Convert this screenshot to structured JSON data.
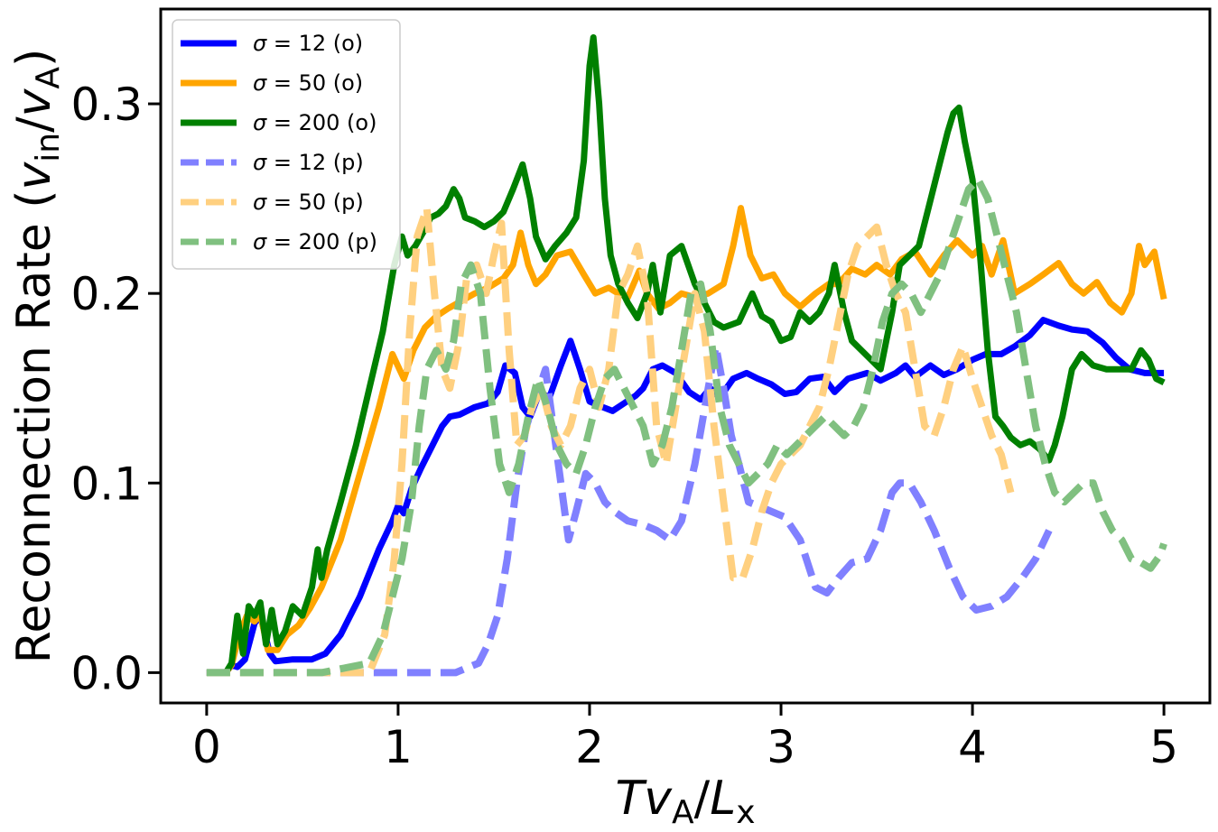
{
  "chart_data": {
    "type": "line",
    "title": "",
    "xlabel": "T v_A / L_x",
    "ylabel": "Reconnection Rate (v_in / v_A)",
    "xlim": [
      -0.24,
      5.24
    ],
    "ylim": [
      -0.016,
      0.35
    ],
    "xticks": [
      "0",
      "1",
      "2",
      "3",
      "4",
      "5"
    ],
    "yticks": [
      "0.0",
      "0.1",
      "0.2",
      "0.3"
    ],
    "legend_position": "top-left",
    "series": [
      {
        "name": "σ = 12 (o)",
        "label_sym": "σ",
        "label_rest": " = 12 (o)",
        "color": "#0000ff",
        "style": "solid",
        "x": [
          0,
          0.1,
          0.13,
          0.16,
          0.2,
          0.25,
          0.28,
          0.33,
          0.36,
          0.45,
          0.55,
          0.62,
          0.7,
          0.8,
          0.9,
          0.97,
          1.0,
          1.03,
          1.07,
          1.12,
          1.18,
          1.23,
          1.27,
          1.32,
          1.4,
          1.47,
          1.52,
          1.56,
          1.61,
          1.65,
          1.69,
          1.74,
          1.79,
          1.85,
          1.9,
          1.95,
          2.0,
          2.07,
          2.12,
          2.18,
          2.24,
          2.28,
          2.33,
          2.38,
          2.45,
          2.52,
          2.58,
          2.63,
          2.68,
          2.75,
          2.82,
          2.88,
          2.95,
          3.02,
          3.08,
          3.15,
          3.22,
          3.28,
          3.35,
          3.45,
          3.52,
          3.6,
          3.65,
          3.7,
          3.78,
          3.85,
          3.92,
          4.0,
          4.07,
          4.15,
          4.22,
          4.3,
          4.37,
          4.45,
          4.52,
          4.6,
          4.68,
          4.75,
          4.82,
          4.9,
          5.0
        ],
        "y": [
          0.0,
          0.0,
          0.004,
          0.003,
          0.007,
          0.026,
          0.03,
          0.01,
          0.006,
          0.007,
          0.007,
          0.01,
          0.02,
          0.04,
          0.065,
          0.08,
          0.088,
          0.084,
          0.097,
          0.108,
          0.12,
          0.13,
          0.135,
          0.136,
          0.14,
          0.142,
          0.148,
          0.162,
          0.158,
          0.14,
          0.135,
          0.148,
          0.145,
          0.162,
          0.175,
          0.16,
          0.143,
          0.14,
          0.138,
          0.142,
          0.146,
          0.15,
          0.16,
          0.162,
          0.158,
          0.148,
          0.144,
          0.15,
          0.145,
          0.155,
          0.158,
          0.155,
          0.152,
          0.147,
          0.148,
          0.155,
          0.156,
          0.148,
          0.155,
          0.158,
          0.154,
          0.158,
          0.162,
          0.156,
          0.162,
          0.157,
          0.16,
          0.165,
          0.168,
          0.168,
          0.172,
          0.178,
          0.186,
          0.183,
          0.181,
          0.18,
          0.174,
          0.166,
          0.16,
          0.158,
          0.158
        ]
      },
      {
        "name": "σ = 50 (o)",
        "label_sym": "σ",
        "label_rest": " = 50 (o)",
        "color": "#ffa500",
        "style": "solid",
        "x": [
          0,
          0.1,
          0.13,
          0.17,
          0.21,
          0.25,
          0.28,
          0.32,
          0.37,
          0.42,
          0.48,
          0.54,
          0.6,
          0.7,
          0.8,
          0.9,
          0.97,
          1.03,
          1.08,
          1.14,
          1.2,
          1.26,
          1.33,
          1.4,
          1.47,
          1.55,
          1.6,
          1.64,
          1.68,
          1.72,
          1.77,
          1.83,
          1.9,
          1.97,
          2.03,
          2.1,
          2.15,
          2.2,
          2.26,
          2.3,
          2.36,
          2.42,
          2.48,
          2.55,
          2.62,
          2.7,
          2.75,
          2.79,
          2.84,
          2.9,
          2.96,
          3.02,
          3.1,
          3.18,
          3.25,
          3.3,
          3.37,
          3.44,
          3.5,
          3.57,
          3.63,
          3.7,
          3.78,
          3.85,
          3.92,
          4.0,
          4.05,
          4.1,
          4.16,
          4.22,
          4.3,
          4.37,
          4.45,
          4.52,
          4.58,
          4.65,
          4.72,
          4.78,
          4.83,
          4.87,
          4.9,
          4.95,
          5.0
        ],
        "y": [
          0.0,
          0.0,
          0.004,
          0.02,
          0.03,
          0.027,
          0.031,
          0.012,
          0.012,
          0.02,
          0.025,
          0.034,
          0.045,
          0.07,
          0.105,
          0.14,
          0.168,
          0.155,
          0.17,
          0.182,
          0.188,
          0.192,
          0.196,
          0.2,
          0.203,
          0.208,
          0.215,
          0.232,
          0.215,
          0.205,
          0.21,
          0.22,
          0.222,
          0.21,
          0.2,
          0.203,
          0.2,
          0.198,
          0.212,
          0.2,
          0.192,
          0.195,
          0.2,
          0.198,
          0.2,
          0.205,
          0.225,
          0.245,
          0.22,
          0.208,
          0.21,
          0.2,
          0.193,
          0.2,
          0.205,
          0.205,
          0.213,
          0.21,
          0.215,
          0.21,
          0.218,
          0.222,
          0.21,
          0.22,
          0.228,
          0.22,
          0.225,
          0.21,
          0.228,
          0.2,
          0.205,
          0.21,
          0.216,
          0.205,
          0.2,
          0.206,
          0.195,
          0.19,
          0.2,
          0.225,
          0.215,
          0.222,
          0.197
        ]
      },
      {
        "name": "σ = 200 (o)",
        "label_sym": "σ",
        "label_rest": " = 200 (o)",
        "color": "#008000",
        "style": "solid",
        "x": [
          0,
          0.1,
          0.13,
          0.16,
          0.19,
          0.22,
          0.25,
          0.28,
          0.31,
          0.34,
          0.37,
          0.41,
          0.45,
          0.5,
          0.55,
          0.58,
          0.6,
          0.63,
          0.7,
          0.78,
          0.85,
          0.92,
          0.98,
          1.02,
          1.05,
          1.09,
          1.13,
          1.17,
          1.21,
          1.25,
          1.29,
          1.32,
          1.35,
          1.4,
          1.45,
          1.5,
          1.55,
          1.6,
          1.65,
          1.69,
          1.72,
          1.77,
          1.82,
          1.88,
          1.93,
          1.97,
          2.0,
          2.02,
          2.05,
          2.08,
          2.11,
          2.15,
          2.2,
          2.25,
          2.3,
          2.33,
          2.37,
          2.42,
          2.48,
          2.55,
          2.6,
          2.65,
          2.7,
          2.78,
          2.85,
          2.9,
          2.95,
          3.0,
          3.05,
          3.1,
          3.15,
          3.2,
          3.25,
          3.28,
          3.3,
          3.33,
          3.37,
          3.42,
          3.47,
          3.52,
          3.55,
          3.58,
          3.62,
          3.67,
          3.72,
          3.77,
          3.82,
          3.87,
          3.9,
          3.93,
          3.96,
          4.0,
          4.04,
          4.08,
          4.12,
          4.16,
          4.2,
          4.25,
          4.3,
          4.35,
          4.4,
          4.43,
          4.47,
          4.52,
          4.57,
          4.63,
          4.7,
          4.77,
          4.83,
          4.88,
          4.92,
          4.96,
          5.0
        ],
        "y": [
          0.0,
          0.0,
          0.005,
          0.03,
          0.01,
          0.035,
          0.03,
          0.037,
          0.015,
          0.033,
          0.015,
          0.022,
          0.035,
          0.03,
          0.045,
          0.065,
          0.05,
          0.065,
          0.09,
          0.12,
          0.15,
          0.18,
          0.215,
          0.23,
          0.22,
          0.225,
          0.232,
          0.24,
          0.242,
          0.246,
          0.255,
          0.25,
          0.24,
          0.238,
          0.235,
          0.238,
          0.243,
          0.255,
          0.268,
          0.25,
          0.23,
          0.218,
          0.225,
          0.232,
          0.24,
          0.27,
          0.32,
          0.335,
          0.3,
          0.25,
          0.22,
          0.205,
          0.195,
          0.187,
          0.2,
          0.215,
          0.19,
          0.22,
          0.225,
          0.205,
          0.195,
          0.185,
          0.182,
          0.185,
          0.2,
          0.188,
          0.185,
          0.175,
          0.177,
          0.19,
          0.185,
          0.19,
          0.2,
          0.215,
          0.205,
          0.19,
          0.175,
          0.17,
          0.165,
          0.16,
          0.175,
          0.19,
          0.215,
          0.22,
          0.225,
          0.245,
          0.265,
          0.285,
          0.295,
          0.298,
          0.28,
          0.26,
          0.22,
          0.17,
          0.135,
          0.13,
          0.124,
          0.12,
          0.122,
          0.118,
          0.112,
          0.12,
          0.135,
          0.16,
          0.168,
          0.162,
          0.16,
          0.16,
          0.16,
          0.17,
          0.165,
          0.155,
          0.153
        ]
      },
      {
        "name": "σ = 12 (p)",
        "label_sym": "σ",
        "label_rest": " = 12 (p)",
        "color": "#8080ff",
        "style": "dashed",
        "x": [
          0,
          0.5,
          1.0,
          1.3,
          1.42,
          1.47,
          1.52,
          1.57,
          1.62,
          1.67,
          1.72,
          1.77,
          1.81,
          1.85,
          1.89,
          1.93,
          1.98,
          2.03,
          2.08,
          2.13,
          2.2,
          2.28,
          2.35,
          2.42,
          2.48,
          2.55,
          2.62,
          2.66,
          2.7,
          2.74,
          2.78,
          2.83,
          2.88,
          2.95,
          3.02,
          3.1,
          3.18,
          3.24,
          3.3,
          3.37,
          3.45,
          3.52,
          3.58,
          3.62,
          3.67,
          3.73,
          3.8,
          3.88,
          3.95,
          4.02,
          4.1,
          4.18,
          4.26,
          4.33,
          4.4
        ],
        "y": [
          0.0,
          0.0,
          0.0,
          0.0,
          0.005,
          0.015,
          0.03,
          0.06,
          0.1,
          0.13,
          0.145,
          0.16,
          0.13,
          0.1,
          0.07,
          0.085,
          0.105,
          0.1,
          0.09,
          0.085,
          0.08,
          0.078,
          0.075,
          0.07,
          0.08,
          0.11,
          0.15,
          0.172,
          0.15,
          0.125,
          0.11,
          0.09,
          0.088,
          0.085,
          0.082,
          0.07,
          0.045,
          0.042,
          0.05,
          0.058,
          0.06,
          0.075,
          0.095,
          0.1,
          0.1,
          0.09,
          0.075,
          0.055,
          0.04,
          0.033,
          0.035,
          0.04,
          0.05,
          0.06,
          0.075
        ]
      },
      {
        "name": "σ = 50 (p)",
        "label_sym": "σ",
        "label_rest": " = 50 (p)",
        "color": "#ffd080",
        "style": "dashed",
        "x": [
          0,
          0.5,
          0.85,
          0.93,
          0.98,
          1.02,
          1.06,
          1.1,
          1.15,
          1.19,
          1.23,
          1.27,
          1.32,
          1.36,
          1.41,
          1.46,
          1.5,
          1.54,
          1.58,
          1.62,
          1.66,
          1.7,
          1.75,
          1.8,
          1.85,
          1.9,
          1.95,
          2.0,
          2.05,
          2.1,
          2.15,
          2.2,
          2.25,
          2.3,
          2.35,
          2.4,
          2.45,
          2.5,
          2.55,
          2.6,
          2.65,
          2.7,
          2.75,
          2.8,
          2.85,
          2.9,
          2.95,
          3.0,
          3.05,
          3.1,
          3.15,
          3.2,
          3.25,
          3.3,
          3.35,
          3.4,
          3.45,
          3.5,
          3.55,
          3.6,
          3.65,
          3.7,
          3.75,
          3.8,
          3.85,
          3.9,
          3.95,
          4.0,
          4.05,
          4.1,
          4.15,
          4.2
        ],
        "y": [
          0.0,
          0.0,
          0.0,
          0.02,
          0.06,
          0.11,
          0.18,
          0.23,
          0.245,
          0.2,
          0.16,
          0.15,
          0.175,
          0.21,
          0.215,
          0.2,
          0.22,
          0.237,
          0.17,
          0.12,
          0.125,
          0.14,
          0.15,
          0.13,
          0.12,
          0.13,
          0.15,
          0.16,
          0.14,
          0.16,
          0.2,
          0.21,
          0.225,
          0.2,
          0.13,
          0.11,
          0.14,
          0.17,
          0.2,
          0.18,
          0.13,
          0.09,
          0.05,
          0.05,
          0.065,
          0.085,
          0.1,
          0.11,
          0.115,
          0.12,
          0.13,
          0.14,
          0.16,
          0.185,
          0.21,
          0.225,
          0.23,
          0.235,
          0.215,
          0.2,
          0.19,
          0.16,
          0.13,
          0.125,
          0.14,
          0.16,
          0.172,
          0.155,
          0.14,
          0.125,
          0.115,
          0.095
        ]
      },
      {
        "name": "σ = 200 (p)",
        "label_sym": "σ",
        "label_rest": " = 200 (p)",
        "color": "#80c080",
        "style": "dashed",
        "x": [
          0,
          0.3,
          0.6,
          0.85,
          0.92,
          0.97,
          1.02,
          1.07,
          1.11,
          1.15,
          1.2,
          1.25,
          1.29,
          1.33,
          1.38,
          1.43,
          1.48,
          1.53,
          1.58,
          1.63,
          1.68,
          1.73,
          1.78,
          1.83,
          1.88,
          1.93,
          1.98,
          2.03,
          2.08,
          2.13,
          2.18,
          2.23,
          2.28,
          2.33,
          2.38,
          2.43,
          2.48,
          2.53,
          2.58,
          2.63,
          2.68,
          2.73,
          2.78,
          2.83,
          2.88,
          2.93,
          2.98,
          3.03,
          3.08,
          3.13,
          3.18,
          3.23,
          3.28,
          3.33,
          3.38,
          3.43,
          3.48,
          3.53,
          3.58,
          3.63,
          3.68,
          3.73,
          3.78,
          3.83,
          3.88,
          3.93,
          3.98,
          4.03,
          4.08,
          4.13,
          4.18,
          4.23,
          4.28,
          4.33,
          4.38,
          4.43,
          4.48,
          4.53,
          4.58,
          4.63,
          4.68,
          4.73,
          4.78,
          4.83,
          4.88,
          4.93,
          4.98,
          5.0
        ],
        "y": [
          0.0,
          0.0,
          0.0,
          0.005,
          0.02,
          0.04,
          0.06,
          0.09,
          0.13,
          0.16,
          0.17,
          0.16,
          0.175,
          0.205,
          0.215,
          0.2,
          0.15,
          0.11,
          0.095,
          0.11,
          0.135,
          0.155,
          0.14,
          0.12,
          0.11,
          0.105,
          0.12,
          0.14,
          0.155,
          0.16,
          0.15,
          0.14,
          0.13,
          0.11,
          0.12,
          0.14,
          0.17,
          0.2,
          0.205,
          0.18,
          0.14,
          0.12,
          0.11,
          0.1,
          0.105,
          0.11,
          0.12,
          0.115,
          0.12,
          0.125,
          0.13,
          0.135,
          0.13,
          0.125,
          0.13,
          0.14,
          0.16,
          0.185,
          0.2,
          0.205,
          0.2,
          0.19,
          0.2,
          0.21,
          0.225,
          0.24,
          0.255,
          0.26,
          0.25,
          0.23,
          0.21,
          0.19,
          0.16,
          0.13,
          0.11,
          0.095,
          0.09,
          0.095,
          0.1,
          0.1,
          0.085,
          0.075,
          0.07,
          0.06,
          0.058,
          0.055,
          0.062,
          0.068
        ]
      }
    ]
  }
}
